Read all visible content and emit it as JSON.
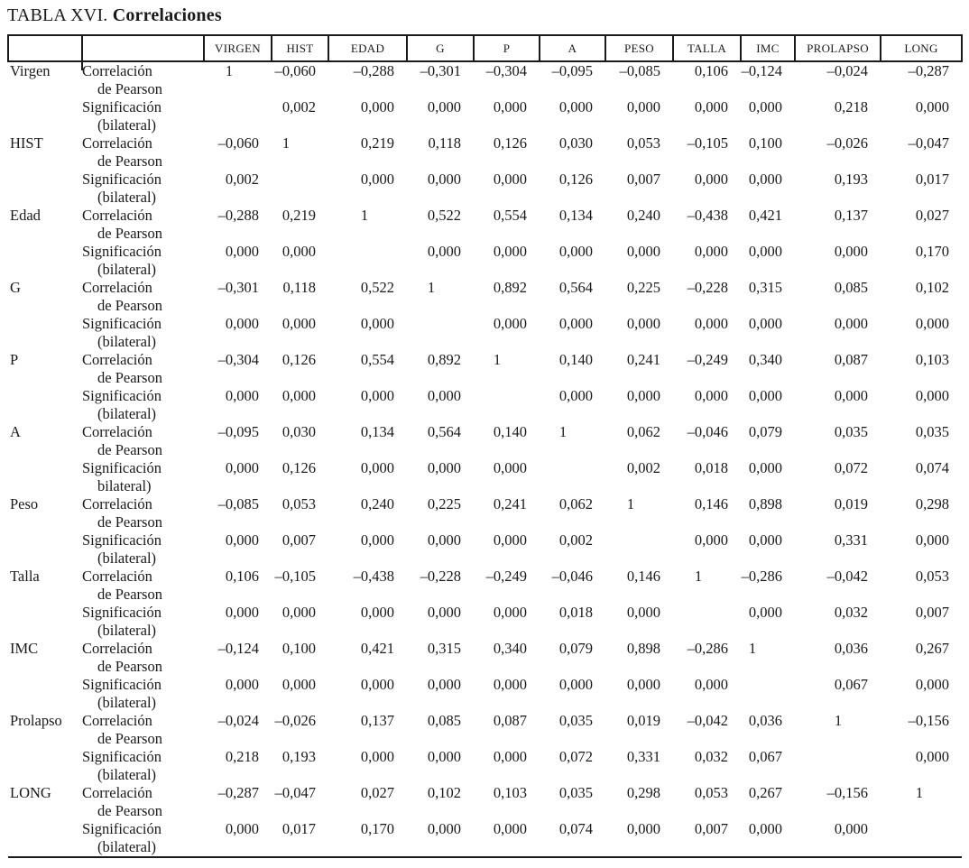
{
  "title": {
    "prefix": "TABLA XVI.",
    "emphasis": "Correlaciones"
  },
  "table": {
    "columns": [
      "VIRGEN",
      "HIST",
      "EDAD",
      "G",
      "P",
      "A",
      "PESO",
      "TALLA",
      "IMC",
      "PROLAPSO",
      "LONG"
    ],
    "stat_labels": {
      "pearson_line1": "Correlación",
      "pearson_line2": "de Pearson",
      "sig_line1": "Significación",
      "sig_line2_default": "(bilateral)"
    },
    "rows": [
      {
        "label": "Virgen",
        "sig_line2": "(bilateral)",
        "pearson": [
          "1",
          "–0,060",
          "–0,288",
          "–0,301",
          "–0,304",
          "–0,095",
          "–0,085",
          "0,106",
          "–0,124",
          "–0,024",
          "–0,287"
        ],
        "sig": [
          "",
          "0,002",
          "0,000",
          "0,000",
          "0,000",
          "0,000",
          "0,000",
          "0,000",
          "0,000",
          "0,218",
          "0,000"
        ]
      },
      {
        "label": "HIST",
        "sig_line2": "(bilateral)",
        "pearson": [
          "–0,060",
          "1",
          "0,219",
          "0,118",
          "0,126",
          "0,030",
          "0,053",
          "–0,105",
          "0,100",
          "–0,026",
          "–0,047"
        ],
        "sig": [
          "0,002",
          "",
          "0,000",
          "0,000",
          "0,000",
          "0,126",
          "0,007",
          "0,000",
          "0,000",
          "0,193",
          "0,017"
        ]
      },
      {
        "label": "Edad",
        "sig_line2": "(bilateral)",
        "pearson": [
          "–0,288",
          "0,219",
          "1",
          "0,522",
          "0,554",
          "0,134",
          "0,240",
          "–0,438",
          "0,421",
          "0,137",
          "0,027"
        ],
        "sig": [
          "0,000",
          "0,000",
          "",
          "0,000",
          "0,000",
          "0,000",
          "0,000",
          "0,000",
          "0,000",
          "0,000",
          "0,170"
        ]
      },
      {
        "label": "G",
        "sig_line2": "(bilateral)",
        "pearson": [
          "–0,301",
          "0,118",
          "0,522",
          "1",
          "0,892",
          "0,564",
          "0,225",
          "–0,228",
          "0,315",
          "0,085",
          "0,102"
        ],
        "sig": [
          "0,000",
          "0,000",
          "0,000",
          "",
          "0,000",
          "0,000",
          "0,000",
          "0,000",
          "0,000",
          "0,000",
          "0,000"
        ]
      },
      {
        "label": "P",
        "sig_line2": "(bilateral)",
        "pearson": [
          "–0,304",
          "0,126",
          "0,554",
          "0,892",
          "1",
          "0,140",
          "0,241",
          "–0,249",
          "0,340",
          "0,087",
          "0,103"
        ],
        "sig": [
          "0,000",
          "0,000",
          "0,000",
          "0,000",
          "",
          "0,000",
          "0,000",
          "0,000",
          "0,000",
          "0,000",
          "0,000"
        ]
      },
      {
        "label": "A",
        "sig_line2": "bilateral)",
        "pearson": [
          "–0,095",
          "0,030",
          "0,134",
          "0,564",
          "0,140",
          "1",
          "0,062",
          "–0,046",
          "0,079",
          "0,035",
          "0,035"
        ],
        "sig": [
          "0,000",
          "0,126",
          "0,000",
          "0,000",
          "0,000",
          "",
          "0,002",
          "0,018",
          "0,000",
          "0,072",
          "0,074"
        ]
      },
      {
        "label": "Peso",
        "sig_line2": "(bilateral)",
        "pearson": [
          "–0,085",
          "0,053",
          "0,240",
          "0,225",
          "0,241",
          "0,062",
          "1",
          "0,146",
          "0,898",
          "0,019",
          "0,298"
        ],
        "sig": [
          "0,000",
          "0,007",
          "0,000",
          "0,000",
          "0,000",
          "0,002",
          "",
          "0,000",
          "0,000",
          "0,331",
          "0,000"
        ]
      },
      {
        "label": "Talla",
        "sig_line2": "(bilateral)",
        "pearson": [
          "0,106",
          "–0,105",
          "–0,438",
          "–0,228",
          "–0,249",
          "–0,046",
          "0,146",
          "1",
          "–0,286",
          "–0,042",
          "0,053"
        ],
        "sig": [
          "0,000",
          "0,000",
          "0,000",
          "0,000",
          "0,000",
          "0,018",
          "0,000",
          "",
          "0,000",
          "0,032",
          "0,007"
        ]
      },
      {
        "label": "IMC",
        "sig_line2": "(bilateral)",
        "pearson": [
          "–0,124",
          "0,100",
          "0,421",
          "0,315",
          "0,340",
          "0,079",
          "0,898",
          "–0,286",
          "1",
          "0,036",
          "0,267"
        ],
        "sig": [
          "0,000",
          "0,000",
          "0,000",
          "0,000",
          "0,000",
          "0,000",
          "0,000",
          "0,000",
          "",
          "0,067",
          "0,000"
        ]
      },
      {
        "label": "Prolapso",
        "sig_line2": "(bilateral)",
        "pearson": [
          "–0,024",
          "–0,026",
          "0,137",
          "0,085",
          "0,087",
          "0,035",
          "0,019",
          "–0,042",
          "0,036",
          "1",
          "–0,156"
        ],
        "sig": [
          "0,218",
          "0,193",
          "0,000",
          "0,000",
          "0,000",
          "0,072",
          "0,331",
          "0,032",
          "0,067",
          "",
          "0,000"
        ]
      },
      {
        "label": "LONG",
        "sig_line2": "(bilateral)",
        "pearson": [
          "–0,287",
          "–0,047",
          "0,027",
          "0,102",
          "0,103",
          "0,035",
          "0,298",
          "0,053",
          "0,267",
          "–0,156",
          "1"
        ],
        "sig": [
          "0,000",
          "0,017",
          "0,170",
          "0,000",
          "0,000",
          "0,074",
          "0,000",
          "0,007",
          "0,000",
          "0,000",
          ""
        ]
      }
    ]
  }
}
